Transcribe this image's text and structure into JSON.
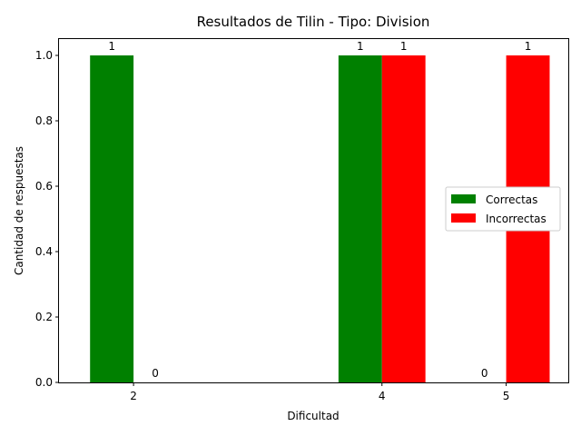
{
  "chart_data": {
    "type": "bar",
    "title": "Resultados de Tilin - Tipo: Division",
    "xlabel": "Dificultad",
    "ylabel": "Cantidad de respuestas",
    "categories": [
      "2",
      "4",
      "5"
    ],
    "series": [
      {
        "name": "Correctas",
        "color": "#008000",
        "values": [
          1,
          1,
          0
        ]
      },
      {
        "name": "Incorrectas",
        "color": "#ff0000",
        "values": [
          0,
          1,
          1
        ]
      }
    ],
    "ylim": [
      0,
      1.05
    ],
    "yticks": [
      "0.0",
      "0.2",
      "0.4",
      "0.6",
      "0.8",
      "1.0"
    ],
    "grid": false,
    "legend_position": "center-right"
  }
}
